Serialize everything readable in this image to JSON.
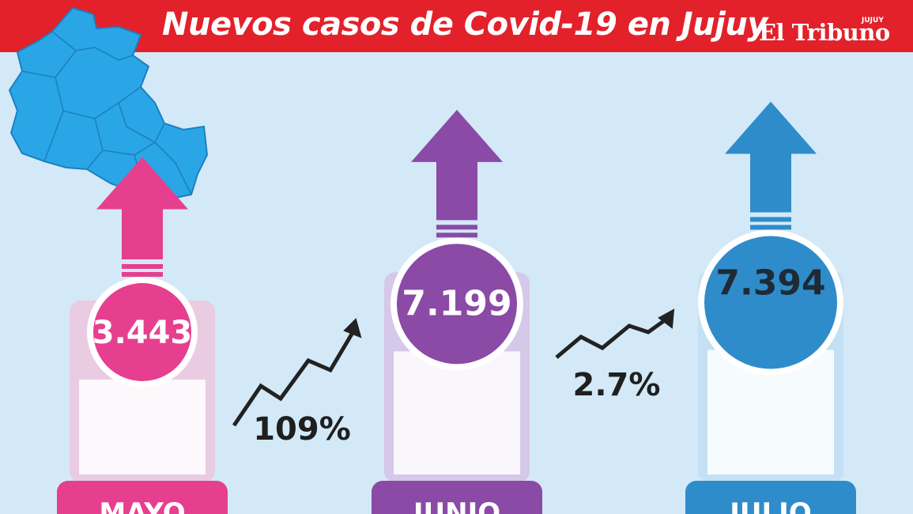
{
  "header": {
    "title": "Nuevos casos de Covid-19 en Jujuy",
    "logo": "El Tribuno",
    "logo_small": "JUJUY"
  },
  "colors": {
    "mayo": "#e63f8f",
    "junio": "#8a4aa6",
    "julio": "#2f8ccb",
    "header": "#e2212b",
    "map": "#2aa6e6"
  },
  "chart_data": {
    "type": "bar",
    "categories": [
      "MAYO",
      "JUNIO",
      "JULIO"
    ],
    "values": [
      3443,
      7199,
      7394
    ],
    "value_labels": [
      "3.443",
      "7.199",
      "7.394"
    ],
    "changes": [
      "109%",
      "2.7%"
    ],
    "title": "Nuevos casos de Covid-19 en Jujuy",
    "xlabel": "",
    "ylabel": ""
  }
}
